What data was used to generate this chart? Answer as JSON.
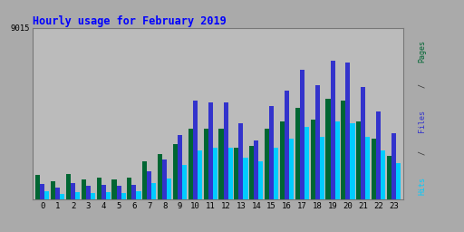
{
  "title": "Hourly usage for February 2019",
  "hours": [
    0,
    1,
    2,
    3,
    4,
    5,
    6,
    7,
    8,
    9,
    10,
    11,
    12,
    13,
    14,
    15,
    16,
    17,
    18,
    19,
    20,
    21,
    22,
    23
  ],
  "pages": [
    1300,
    950,
    1350,
    1050,
    1150,
    1050,
    1150,
    2000,
    2400,
    2900,
    3700,
    3700,
    3700,
    2700,
    2800,
    3700,
    4100,
    4800,
    4200,
    5300,
    5200,
    4100,
    3200,
    2300
  ],
  "files": [
    800,
    650,
    850,
    700,
    750,
    700,
    750,
    1500,
    2100,
    3400,
    5200,
    5100,
    5100,
    4000,
    3100,
    4900,
    5700,
    6800,
    6000,
    7300,
    7200,
    5900,
    4600,
    3500
  ],
  "hits": [
    450,
    300,
    400,
    350,
    400,
    350,
    420,
    850,
    1100,
    1800,
    2600,
    2700,
    2700,
    2200,
    2000,
    2700,
    3200,
    3800,
    3300,
    4100,
    4000,
    3300,
    2600,
    1900
  ],
  "color_pages": "#006633",
  "color_files": "#3333CC",
  "color_hits": "#00CCFF",
  "bg_color": "#AAAAAA",
  "plot_bg": "#BBBBBB",
  "bar_width": 0.3,
  "ylim": [
    0,
    9015
  ],
  "ytick_val": 9015,
  "title_color": "#0000FF",
  "grid_color": "#999999",
  "figsize": [
    5.12,
    2.56
  ],
  "dpi": 100
}
